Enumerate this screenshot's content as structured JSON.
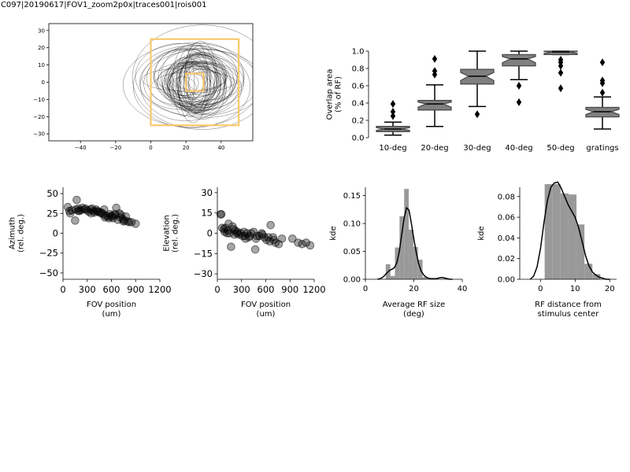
{
  "suptitle": "JC097|20190617|FOV1_zoom2p0x|traces001|rois001",
  "chart_data": [
    {
      "id": "rf-contours",
      "type": "scatter",
      "subtype": "contour-overlay",
      "xlim": [
        -58,
        58
      ],
      "ylim": [
        -34,
        34
      ],
      "xticks": [
        -40,
        -20,
        0,
        20,
        40
      ],
      "yticks": [
        -30,
        -20,
        -10,
        0,
        10,
        20,
        30
      ],
      "xtick_labels": [
        "−40",
        "−20",
        "0",
        "20",
        "40"
      ],
      "ytick_labels": [
        "−30",
        "−20",
        "−10",
        "0",
        "10",
        "20",
        "30"
      ],
      "rf_center": [
        24,
        0
      ],
      "n_contours": 60,
      "stimulus_boxes": [
        {
          "label": "50-deg",
          "x0": 0,
          "x1": 50,
          "y0": -25,
          "y1": 25
        },
        {
          "label": "10-deg",
          "x0": 20,
          "x1": 30,
          "y0": -5,
          "y1": 5
        }
      ],
      "box_color": "#f9c86c",
      "contour_color": "#000000"
    },
    {
      "id": "overlap-boxplot",
      "type": "box",
      "ylabel": "Overlap area\n(% of RF)",
      "ylim": [
        0,
        1.0
      ],
      "yticks": [
        0,
        0.2,
        0.4,
        0.6,
        0.8,
        1.0
      ],
      "ytick_labels": [
        "0.0",
        "0.2",
        "0.4",
        "0.6",
        "0.8",
        "1.0"
      ],
      "categories": [
        "10-deg",
        "20-deg",
        "30-deg",
        "40-deg",
        "50-deg",
        "gratings"
      ],
      "boxes": [
        {
          "q1": 0.07,
          "median": 0.1,
          "q3": 0.13,
          "whislo": 0.03,
          "whishi": 0.18,
          "fliers": [
            0.25,
            0.3,
            0.39
          ]
        },
        {
          "q1": 0.32,
          "median": 0.39,
          "q3": 0.43,
          "whislo": 0.13,
          "whishi": 0.61,
          "fliers": [
            0.73,
            0.77,
            0.91
          ]
        },
        {
          "q1": 0.62,
          "median": 0.71,
          "q3": 0.79,
          "whislo": 0.36,
          "whishi": 1.0,
          "fliers": [
            0.27
          ]
        },
        {
          "q1": 0.83,
          "median": 0.91,
          "q3": 0.96,
          "whislo": 0.67,
          "whishi": 1.0,
          "fliers": [
            0.6,
            0.41
          ]
        },
        {
          "q1": 0.96,
          "median": 0.99,
          "q3": 1.0,
          "whislo": 0.96,
          "whishi": 1.0,
          "fliers": [
            0.9,
            0.87,
            0.83,
            0.75,
            0.57
          ]
        },
        {
          "q1": 0.24,
          "median": 0.3,
          "q3": 0.35,
          "whislo": 0.1,
          "whishi": 0.47,
          "fliers": [
            0.52,
            0.63,
            0.66,
            0.87
          ]
        }
      ],
      "box_color": "#808080"
    },
    {
      "id": "azimuth-scatter",
      "type": "scatter",
      "xlabel": "FOV position\n(um)",
      "ylabel": "Azimuth\n(rel. deg.)",
      "xlim": [
        0,
        1200
      ],
      "ylim": [
        -58,
        58
      ],
      "xticks": [
        0,
        300,
        600,
        900,
        1200
      ],
      "xtick_labels": [
        "0",
        "300",
        "600",
        "900",
        "1200"
      ],
      "yticks": [
        -50,
        -25,
        0,
        25,
        50
      ],
      "ytick_labels": [
        "−50",
        "−25",
        "0",
        "25",
        "50"
      ],
      "x": [
        60,
        80,
        90,
        110,
        160,
        170,
        190,
        200,
        220,
        240,
        260,
        280,
        300,
        320,
        340,
        360,
        380,
        390,
        410,
        430,
        450,
        470,
        500,
        510,
        530,
        560,
        580,
        600,
        620,
        640,
        650,
        680,
        700,
        720,
        740,
        760,
        780,
        800,
        820,
        850,
        900,
        150,
        190,
        420,
        520,
        660,
        570,
        710,
        750,
        350,
        480,
        610
      ],
      "y": [
        33,
        28,
        25,
        29,
        30,
        42,
        31,
        28,
        29,
        32,
        30,
        31,
        29,
        27,
        30,
        31,
        28,
        26,
        30,
        27,
        27,
        25,
        24,
        30,
        22,
        21,
        24,
        22,
        19,
        24,
        23,
        17,
        25,
        23,
        18,
        16,
        21,
        15,
        14,
        14,
        12,
        16,
        28,
        28,
        20,
        32,
        19,
        20,
        15,
        25,
        26,
        21
      ]
    },
    {
      "id": "elevation-scatter",
      "type": "scatter",
      "xlabel": "FOV position\n(um)",
      "ylabel": "Elevation\n(rel. deg.)",
      "xlim": [
        0,
        1200
      ],
      "ylim": [
        -34,
        34
      ],
      "xticks": [
        0,
        300,
        600,
        900,
        1200
      ],
      "xtick_labels": [
        "0",
        "300",
        "600",
        "900",
        "1200"
      ],
      "yticks": [
        -30,
        -15,
        0,
        15,
        30
      ],
      "ytick_labels": [
        "−30",
        "−15",
        "0",
        "15",
        "30"
      ],
      "x": [
        40,
        50,
        60,
        80,
        90,
        100,
        120,
        130,
        150,
        170,
        190,
        200,
        210,
        220,
        240,
        250,
        270,
        290,
        310,
        330,
        350,
        370,
        390,
        400,
        420,
        450,
        470,
        490,
        520,
        550,
        580,
        610,
        630,
        660,
        690,
        700,
        720,
        760,
        800,
        930,
        1000,
        1050,
        1100,
        1150,
        140,
        480,
        650,
        340,
        560
      ],
      "y": [
        14,
        14,
        4,
        3,
        1,
        4,
        0,
        2,
        0,
        -10,
        5,
        3,
        -1,
        2,
        0,
        1,
        -1,
        0,
        -2,
        1,
        -4,
        0,
        -3,
        -2,
        0,
        1,
        -12,
        -2,
        -2,
        0,
        -3,
        -5,
        -3,
        6,
        -3,
        -5,
        -7,
        -8,
        -4,
        -4,
        -7,
        -8,
        -7,
        -9,
        7,
        -4,
        -6,
        -2,
        -1
      ]
    },
    {
      "id": "rf-size-hist",
      "type": "histogram",
      "xlabel": "Average RF size\n(deg)",
      "ylabel": "kde",
      "xlim": [
        0,
        40
      ],
      "ylim": [
        0,
        0.165
      ],
      "xticks": [
        0,
        20,
        40
      ],
      "xtick_labels": [
        "0",
        "20",
        "40"
      ],
      "yticks": [
        0,
        0.05,
        0.1,
        0.15
      ],
      "ytick_labels": [
        "0.00",
        "0.05",
        "0.10",
        "0.15"
      ],
      "bin_edges": [
        8.4,
        10.3,
        12.2,
        14.1,
        16.0,
        17.9,
        19.8,
        21.7,
        23.6,
        25.5
      ],
      "bin_heights": [
        0.027,
        0.006,
        0.057,
        0.113,
        0.162,
        0.089,
        0.058,
        0.035,
        0.004
      ],
      "kde_x": [
        5,
        6,
        7,
        8,
        9,
        10,
        11,
        12,
        13,
        14,
        15,
        16,
        17,
        18,
        19,
        20,
        21,
        22,
        23,
        24,
        25,
        26,
        27,
        28,
        29,
        30,
        31,
        32,
        33,
        34,
        35,
        36
      ],
      "kde_y": [
        0.0,
        0.001,
        0.003,
        0.007,
        0.012,
        0.016,
        0.018,
        0.021,
        0.03,
        0.05,
        0.08,
        0.11,
        0.128,
        0.124,
        0.1,
        0.072,
        0.048,
        0.028,
        0.015,
        0.008,
        0.004,
        0.002,
        0.001,
        0.001,
        0.001,
        0.002,
        0.003,
        0.003,
        0.002,
        0.001,
        0.0,
        0.0
      ],
      "hist_color": "#999999"
    },
    {
      "id": "rf-distance-hist",
      "type": "histogram",
      "xlabel": "RF distance from\nstimulus center",
      "ylabel": "kde",
      "xlim": [
        -6,
        22
      ],
      "ylim": [
        0,
        0.089
      ],
      "xticks": [
        0,
        10,
        20
      ],
      "xtick_labels": [
        "0",
        "10",
        "20"
      ],
      "yticks": [
        0,
        0.02,
        0.04,
        0.06,
        0.08
      ],
      "ytick_labels": [
        "0.00",
        "0.02",
        "0.04",
        "0.06",
        "0.08"
      ],
      "bin_edges": [
        1.2,
        3.5,
        5.8,
        8.1,
        10.4,
        12.7,
        15.0,
        17.3
      ],
      "bin_heights": [
        0.092,
        0.092,
        0.083,
        0.082,
        0.053,
        0.015,
        0.005
      ],
      "kde_x": [
        -3,
        -2,
        -1,
        0,
        1,
        2,
        3,
        4,
        5,
        6,
        7,
        8,
        9,
        10,
        11,
        12,
        13,
        14,
        15,
        16,
        17,
        18,
        19,
        20
      ],
      "kde_y": [
        0.0,
        0.003,
        0.012,
        0.03,
        0.055,
        0.076,
        0.089,
        0.093,
        0.094,
        0.088,
        0.08,
        0.072,
        0.066,
        0.06,
        0.05,
        0.037,
        0.023,
        0.013,
        0.007,
        0.004,
        0.002,
        0.001,
        0.0,
        0.0
      ],
      "hist_color": "#999999"
    }
  ]
}
